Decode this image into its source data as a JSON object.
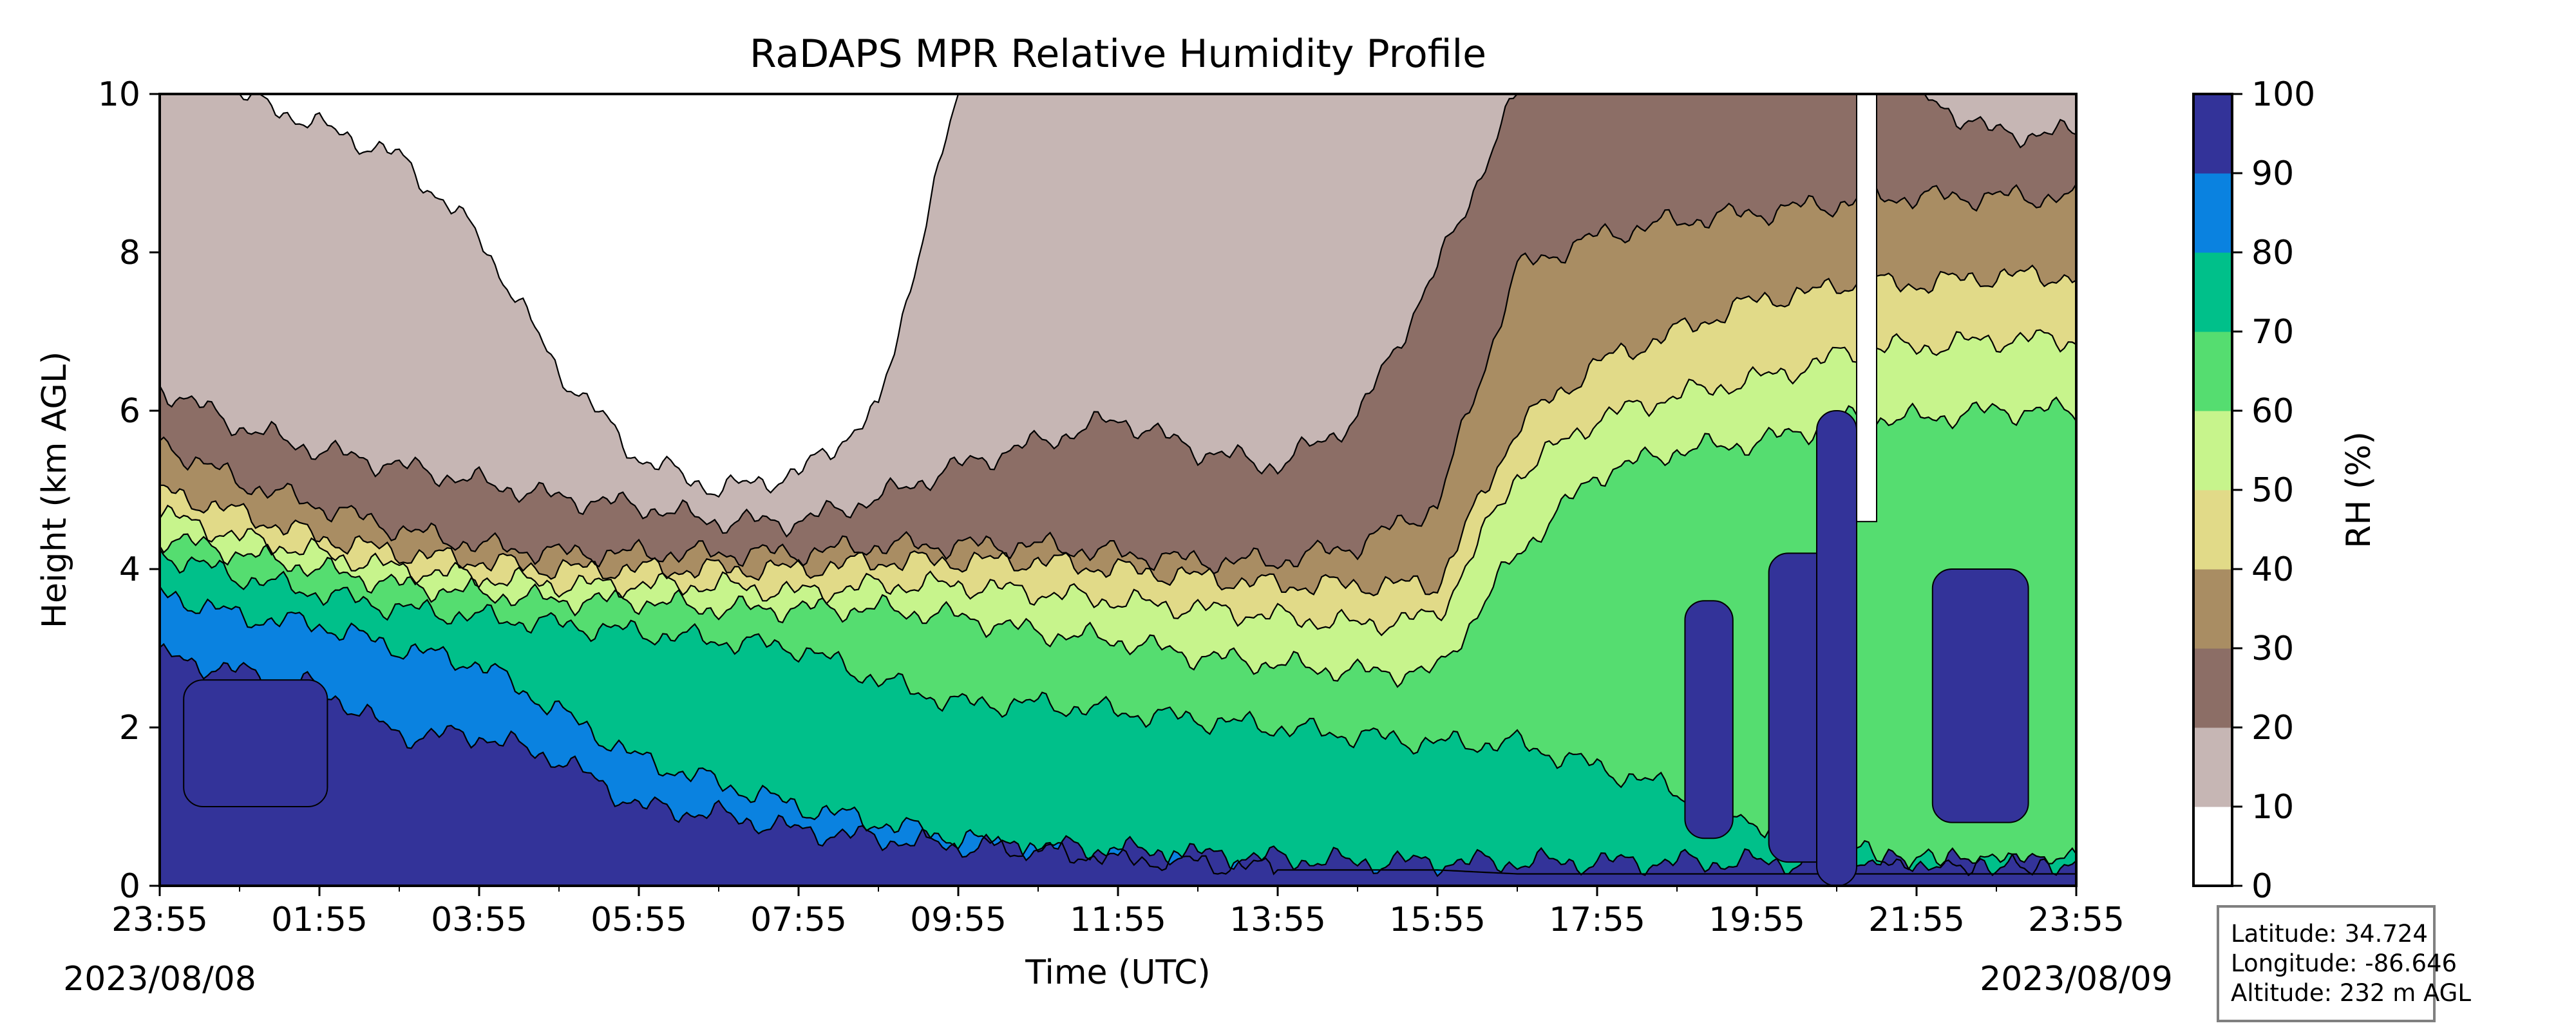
{
  "chart_data": {
    "type": "heatmap",
    "subtype": "filled-contour",
    "title": "RaDAPS MPR Relative Humidity Profile",
    "xlabel": "Time (UTC)",
    "ylabel": "Height (km AGL)",
    "x_ticks": [
      "23:55",
      "01:55",
      "03:55",
      "05:55",
      "07:55",
      "09:55",
      "11:55",
      "13:55",
      "15:55",
      "17:55",
      "19:55",
      "21:55",
      "23:55"
    ],
    "x_tick_hours": [
      0,
      2,
      4,
      6,
      8,
      10,
      12,
      14,
      16,
      18,
      20,
      22,
      24
    ],
    "xlim_hours": [
      0,
      24
    ],
    "start_date": "2023/08/08",
    "end_date": "2023/08/09",
    "y_ticks": [
      "0",
      "2",
      "4",
      "6",
      "8",
      "10"
    ],
    "ylim": [
      0,
      10
    ],
    "colorbar": {
      "label": "RH (%)",
      "levels": [
        0,
        10,
        20,
        30,
        40,
        50,
        60,
        70,
        80,
        90,
        100
      ],
      "tick_labels": [
        "0",
        "10",
        "20",
        "30",
        "40",
        "50",
        "60",
        "70",
        "80",
        "90",
        "100"
      ],
      "colors": [
        "#ffffff",
        "#c6b6b4",
        "#8c6e66",
        "#a98d63",
        "#e1da88",
        "#c7f48c",
        "#55dd70",
        "#00c08a",
        "#0a82e0",
        "#333399"
      ]
    },
    "boundaries": {
      "description": "approximate heights (km) of contour boundaries vs time (hours after 23:55)",
      "t": [
        0,
        1,
        2,
        3,
        4,
        5,
        6,
        7,
        8,
        9,
        10,
        11,
        12,
        13,
        14,
        15,
        16,
        17,
        18,
        19,
        20,
        20.8,
        21,
        21.4,
        22,
        23,
        24
      ],
      "rh90": [
        2.9,
        2.7,
        2.5,
        1.9,
        1.9,
        1.6,
        1.0,
        0.9,
        0.7,
        0.6,
        0.5,
        0.5,
        0.45,
        0.4,
        0.35,
        0.3,
        0.3,
        0.3,
        0.3,
        0.3,
        0.3,
        0.3,
        0.3,
        0.3,
        0.3,
        0.3,
        0.3
      ],
      "rh80": [
        3.7,
        3.4,
        3.3,
        3.0,
        2.8,
        2.2,
        1.6,
        1.3,
        1.0,
        0.8,
        0.6,
        0.45,
        0.35,
        0.3,
        0.2,
        0.2,
        0.2,
        0.15,
        0.15,
        0.15,
        0.15,
        0.15,
        0.15,
        0.15,
        0.15,
        0.15,
        0.15
      ],
      "rh70": [
        4.2,
        3.9,
        3.7,
        3.5,
        3.4,
        3.3,
        3.2,
        3.1,
        3.0,
        2.6,
        2.3,
        2.3,
        2.2,
        2.1,
        2.0,
        1.9,
        1.8,
        1.8,
        1.5,
        1.2,
        0.8,
        0.6,
        0.5,
        0.4,
        0.3,
        0.3,
        0.3
      ],
      "rh60": [
        4.4,
        4.2,
        4.0,
        3.8,
        3.7,
        3.6,
        3.6,
        3.5,
        3.5,
        3.5,
        3.4,
        3.2,
        3.1,
        2.9,
        2.8,
        2.7,
        2.7,
        4.2,
        5.2,
        5.5,
        5.6,
        5.8,
        5.9,
        5.9,
        5.9,
        6.0,
        6.0
      ],
      "rh50": [
        4.7,
        4.4,
        4.2,
        4.0,
        3.9,
        3.8,
        3.8,
        3.8,
        3.7,
        3.8,
        3.8,
        3.7,
        3.6,
        3.5,
        3.4,
        3.3,
        3.4,
        5.2,
        5.9,
        6.2,
        6.4,
        6.6,
        6.7,
        6.8,
        6.8,
        6.9,
        6.9
      ],
      "rh40": [
        5.0,
        4.7,
        4.4,
        4.2,
        4.1,
        4.0,
        4.0,
        4.0,
        4.0,
        4.1,
        4.1,
        4.1,
        4.0,
        3.9,
        3.8,
        3.8,
        3.8,
        5.8,
        6.6,
        7.0,
        7.4,
        7.5,
        7.6,
        7.6,
        7.6,
        7.7,
        7.7
      ],
      "rh30": [
        5.6,
        5.1,
        4.8,
        4.5,
        4.3,
        4.2,
        4.2,
        4.2,
        4.2,
        4.3,
        4.3,
        4.3,
        4.2,
        4.1,
        4.1,
        4.3,
        4.8,
        7.8,
        8.2,
        8.4,
        8.5,
        8.6,
        8.6,
        8.7,
        8.7,
        8.7,
        8.7
      ],
      "rh20": [
        6.3,
        5.8,
        5.5,
        5.3,
        5.1,
        4.9,
        4.8,
        4.6,
        4.6,
        4.9,
        5.3,
        5.6,
        5.9,
        5.5,
        5.3,
        5.9,
        7.8,
        10,
        10,
        10,
        10,
        10,
        10,
        10,
        10,
        9.5,
        9.5
      ],
      "rh10": [
        10,
        10,
        9.6,
        9.2,
        8.2,
        6.5,
        5.4,
        5.0,
        5.2,
        6.0,
        10,
        10,
        10,
        10,
        10,
        10,
        10,
        10,
        10,
        10,
        10,
        10,
        10,
        10,
        10,
        10,
        10
      ]
    }
  },
  "info": {
    "latitude": "Latitude: 34.724",
    "longitude": "Longitude: -86.646",
    "altitude": "Altitude: 232 m AGL"
  }
}
